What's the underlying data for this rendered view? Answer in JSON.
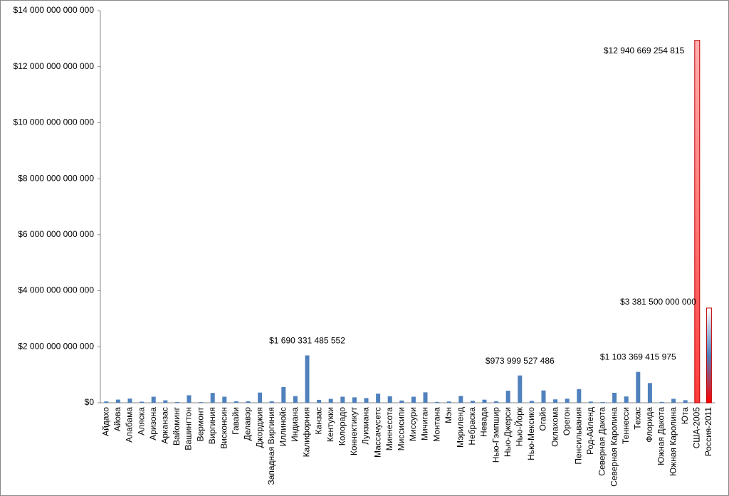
{
  "chart_data": {
    "type": "bar",
    "categories": [
      "Айдахо",
      "Айова",
      "Алабама",
      "Аляска",
      "Аризона",
      "Арканзас",
      "Вайоминг",
      "Вашингтон",
      "Вермонт",
      "Виргиния",
      "Висконсин",
      "Гавайи",
      "Делавэр",
      "Джорджия",
      "Западная Виргиния",
      "Иллинойс",
      "Индиана",
      "Калифорния",
      "Канзас",
      "Кентукки",
      "Колорадо",
      "Коннектикут",
      "Луизиана",
      "Массачусетс",
      "Миннесота",
      "Миссисипи",
      "Миссури",
      "Мичиган",
      "Монтана",
      "Мэн",
      "Мэриленд",
      "Небраска",
      "Невада",
      "Нью-Гэмпшир",
      "Нью-Джерси",
      "Нью-Йорк",
      "Нью-Мексико",
      "Огайо",
      "Оклахома",
      "Орегон",
      "Пенсильвания",
      "Род-Айленд",
      "Северная Дакота",
      "Северная Каролина",
      "Теннесси",
      "Техас",
      "Флорида",
      "Южная Дакота",
      "Южная Каролина",
      "Юта",
      "США-2005",
      "Россия-2011"
    ],
    "values": [
      47000000000,
      113000000000,
      150000000000,
      39000000000,
      216000000000,
      87000000000,
      27000000000,
      268000000000,
      23000000000,
      352000000000,
      217000000000,
      53000000000,
      54000000000,
      364000000000,
      53000000000,
      560000000000,
      238000000000,
      1690331485552,
      104000000000,
      140000000000,
      216000000000,
      194000000000,
      168000000000,
      326000000000,
      233000000000,
      80000000000,
      216000000000,
      372000000000,
      30000000000,
      45000000000,
      244000000000,
      72000000000,
      110000000000,
      55000000000,
      430000000000,
      973999527486,
      69000000000,
      440000000000,
      121000000000,
      146000000000,
      488000000000,
      43000000000,
      24000000000,
      356000000000,
      226000000000,
      1103369415975,
      705000000000,
      31000000000,
      141000000000,
      91000000000,
      12940669254815,
      3381500000000
    ],
    "value_labels": [
      null,
      null,
      null,
      null,
      null,
      null,
      null,
      null,
      null,
      null,
      null,
      null,
      null,
      null,
      null,
      null,
      null,
      "$1 690 331 485 552",
      null,
      null,
      null,
      null,
      null,
      null,
      null,
      null,
      null,
      null,
      null,
      null,
      null,
      null,
      null,
      null,
      null,
      "$973 999 527 486",
      null,
      null,
      null,
      null,
      null,
      null,
      null,
      null,
      null,
      "$1 103 369 415 975",
      null,
      null,
      null,
      null,
      "$12 940 669 254 815",
      "$3 381 500 000 000"
    ],
    "color": "#4f81bd",
    "highlight_colors": {
      "США-2005": [
        "#ff3b3b",
        "#ffb0b0"
      ],
      "Россия-2011": [
        "#ff0000",
        "#4f81bd",
        "#ffffff"
      ]
    },
    "ylim": [
      0,
      14000000000000
    ],
    "yticks": [
      {
        "value": 0,
        "label": "$0"
      },
      {
        "value": 2000000000000,
        "label": "$2 000 000 000 000"
      },
      {
        "value": 4000000000000,
        "label": "$4 000 000 000 000"
      },
      {
        "value": 6000000000000,
        "label": "$6 000 000 000 000"
      },
      {
        "value": 8000000000000,
        "label": "$8 000 000 000 000"
      },
      {
        "value": 10000000000000,
        "label": "$10 000 000 000 000"
      },
      {
        "value": 12000000000000,
        "label": "$12 000 000 000 000"
      },
      {
        "value": 14000000000000,
        "label": "$14 000 000 000 000"
      }
    ],
    "grid": false
  }
}
